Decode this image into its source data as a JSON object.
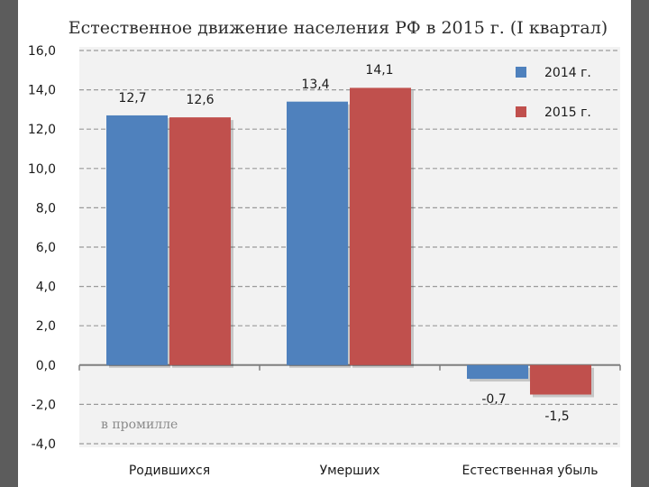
{
  "chart_data": {
    "type": "bar",
    "title": "Естественное движение населения РФ в 2015 г. (I квартал)",
    "annotation": "в промилле",
    "categories": [
      "Родившихся",
      "Умерших",
      "Естественная убыль"
    ],
    "series": [
      {
        "name": "2014 г.",
        "color": "#4f81bd",
        "values": [
          12.7,
          13.4,
          -0.7
        ],
        "labels": [
          "12,7",
          "13,4",
          "-0,7"
        ]
      },
      {
        "name": "2015 г.",
        "color": "#c0504d",
        "values": [
          12.6,
          14.1,
          -1.5
        ],
        "labels": [
          "12,6",
          "14,1",
          "-1,5"
        ]
      }
    ],
    "ylim": [
      -4,
      16
    ],
    "yticks": [
      16,
      14,
      12,
      10,
      8,
      6,
      4,
      2,
      0,
      -2,
      -4
    ],
    "ytick_labels": [
      "16,0",
      "14,0",
      "12,0",
      "10,0",
      "8,0",
      "6,0",
      "4,0",
      "2,0",
      "0,0",
      "-2,0",
      "-4,0"
    ],
    "grid": true,
    "legend": "top-right",
    "plot_background": "#f2f2f2"
  }
}
